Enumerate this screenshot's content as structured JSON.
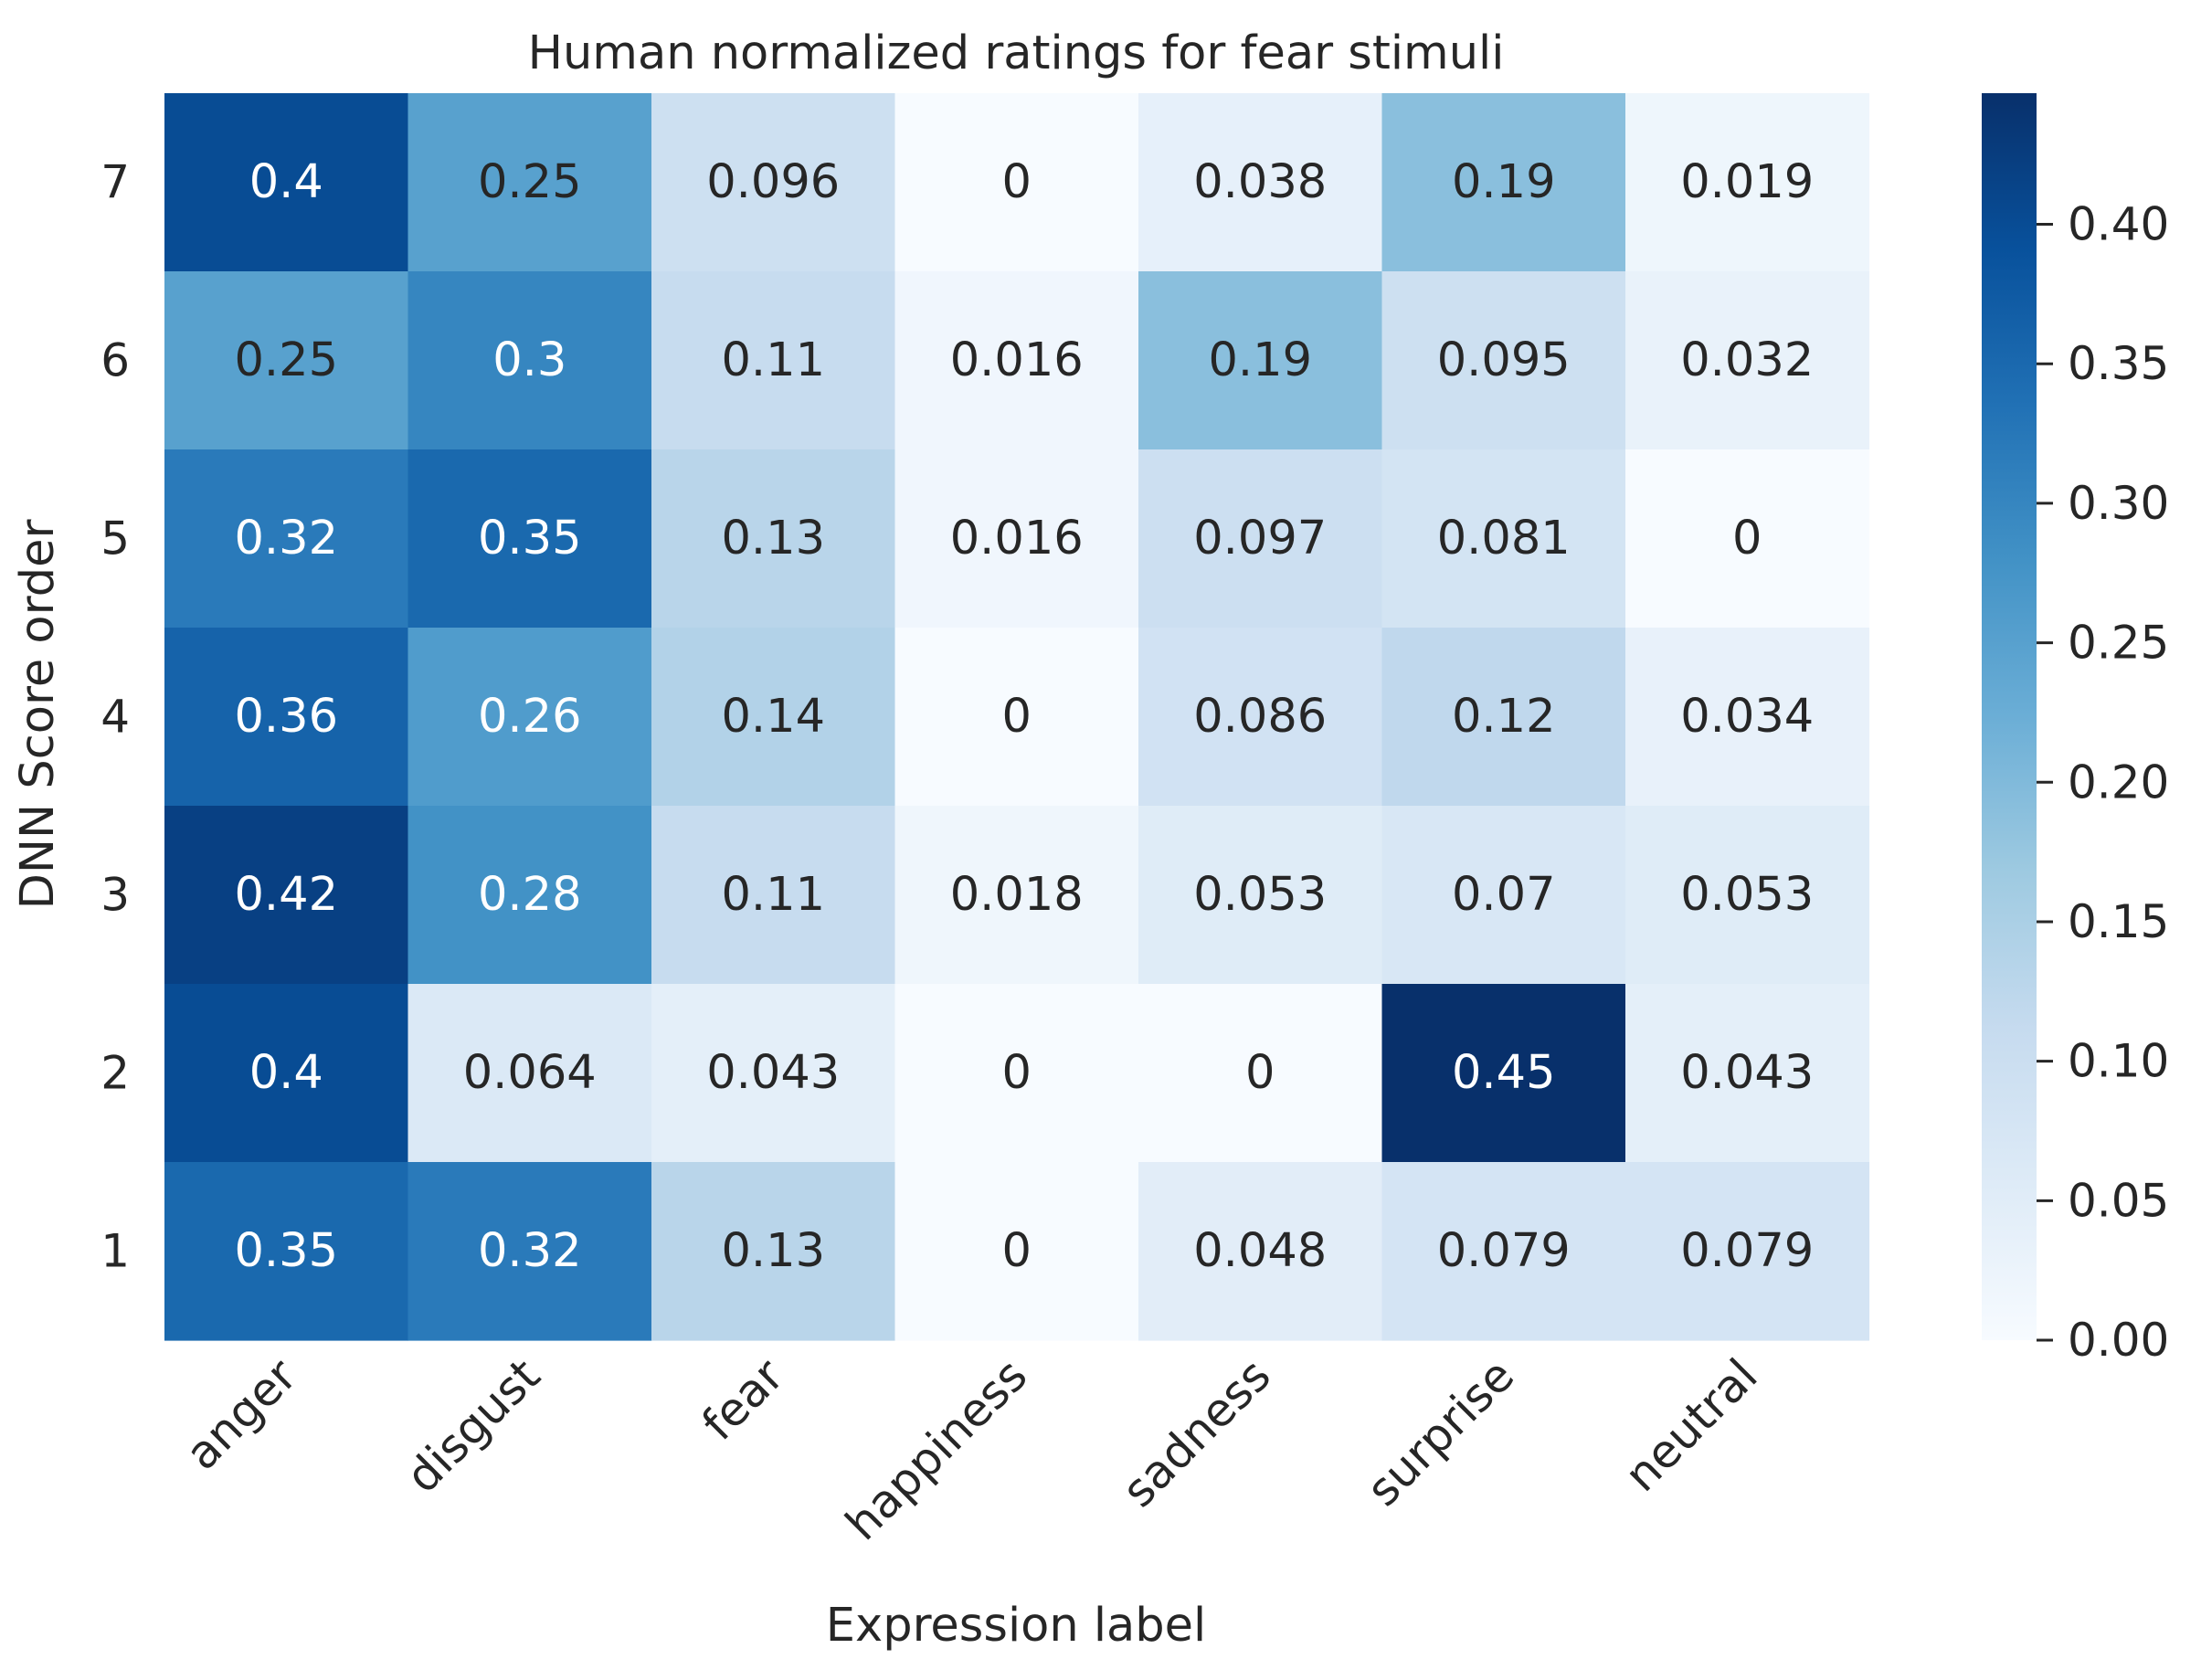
{
  "chart_data": {
    "type": "heatmap",
    "title": "Human normalized ratings for fear stimuli",
    "xlabel": "Expression label",
    "ylabel": "DNN Score order",
    "x_categories": [
      "anger",
      "disgust",
      "fear",
      "happiness",
      "sadness",
      "surprise",
      "neutral"
    ],
    "y_categories": [
      "7",
      "6",
      "5",
      "4",
      "3",
      "2",
      "1"
    ],
    "values": [
      [
        0.4,
        0.25,
        0.096,
        0,
        0.038,
        0.19,
        0.019
      ],
      [
        0.25,
        0.3,
        0.11,
        0.016,
        0.19,
        0.095,
        0.032
      ],
      [
        0.32,
        0.35,
        0.13,
        0.016,
        0.097,
        0.081,
        0
      ],
      [
        0.36,
        0.26,
        0.14,
        0,
        0.086,
        0.12,
        0.034
      ],
      [
        0.42,
        0.28,
        0.11,
        0.018,
        0.053,
        0.07,
        0.053
      ],
      [
        0.4,
        0.064,
        0.043,
        0,
        0,
        0.45,
        0.043
      ],
      [
        0.35,
        0.32,
        0.13,
        0,
        0.048,
        0.079,
        0.079
      ]
    ],
    "value_labels": [
      [
        "0.4",
        "0.25",
        "0.096",
        "0",
        "0.038",
        "0.19",
        "0.019"
      ],
      [
        "0.25",
        "0.3",
        "0.11",
        "0.016",
        "0.19",
        "0.095",
        "0.032"
      ],
      [
        "0.32",
        "0.35",
        "0.13",
        "0.016",
        "0.097",
        "0.081",
        "0"
      ],
      [
        "0.36",
        "0.26",
        "0.14",
        "0",
        "0.086",
        "0.12",
        "0.034"
      ],
      [
        "0.42",
        "0.28",
        "0.11",
        "0.018",
        "0.053",
        "0.07",
        "0.053"
      ],
      [
        "0.4",
        "0.064",
        "0.043",
        "0",
        "0",
        "0.45",
        "0.043"
      ],
      [
        "0.35",
        "0.32",
        "0.13",
        "0",
        "0.048",
        "0.079",
        "0.079"
      ]
    ],
    "colormap": "Blues",
    "vmin": 0,
    "vmax": 0.447,
    "colorbar_ticks": [
      "0.00",
      "0.05",
      "0.10",
      "0.15",
      "0.20",
      "0.25",
      "0.30",
      "0.35",
      "0.40"
    ],
    "colorbar_tick_values": [
      0,
      0.05,
      0.1,
      0.15,
      0.2,
      0.25,
      0.3,
      0.35,
      0.4
    ],
    "text_color_dark": "#262626",
    "text_color_light": "#ffffff",
    "grid": false
  }
}
